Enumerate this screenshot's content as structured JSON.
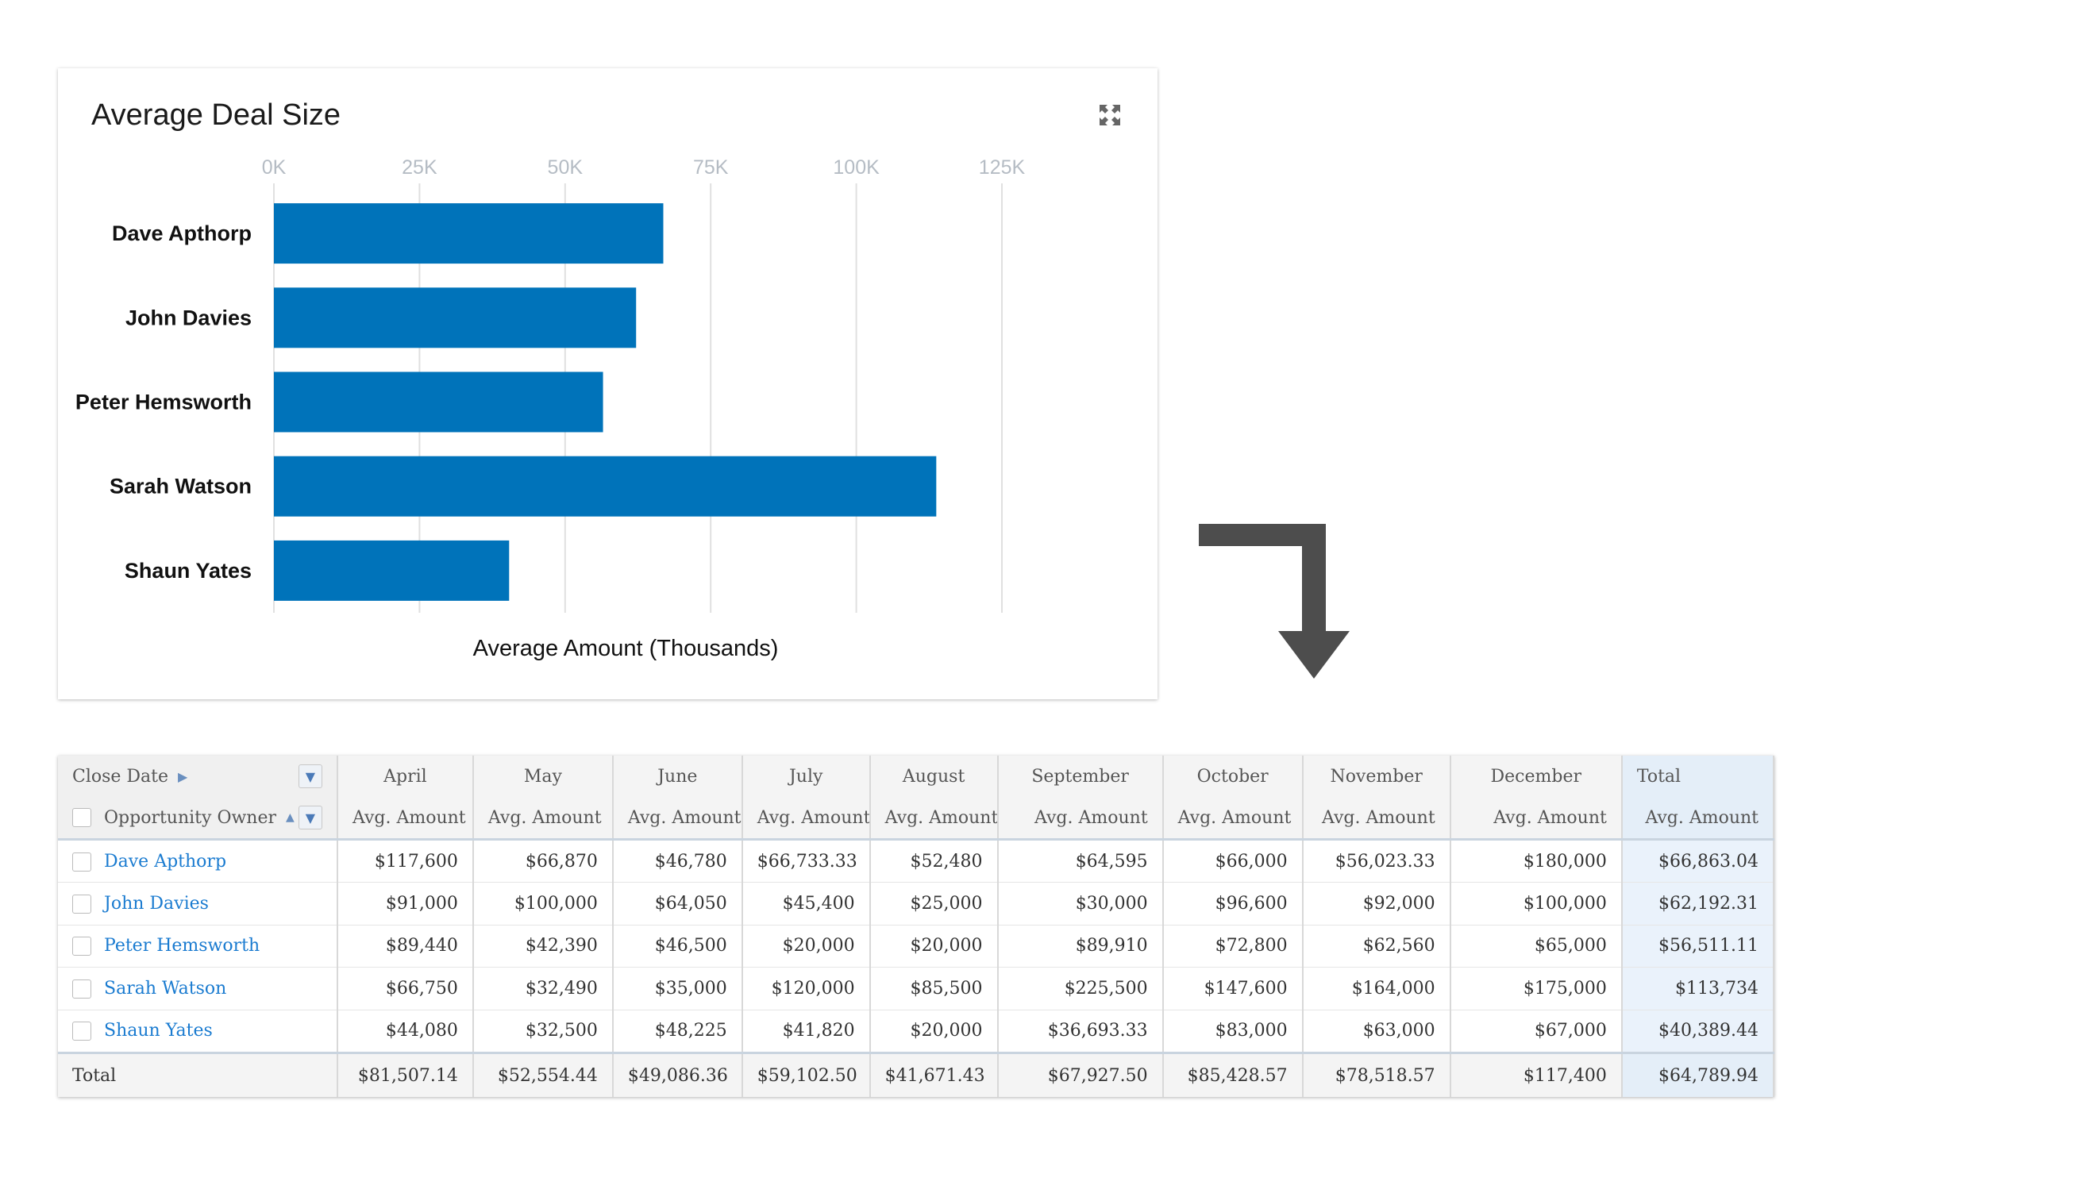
{
  "chart_card": {
    "title": "Average Deal Size",
    "expand_icon": "expand-icon"
  },
  "chart_data": {
    "type": "bar",
    "orientation": "horizontal",
    "title": "Average Deal Size",
    "xlabel": "Average Amount (Thousands)",
    "ylabel": "",
    "categories": [
      "Dave Apthorp",
      "John Davies",
      "Peter Hemsworth",
      "Sarah Watson",
      "Shaun Yates"
    ],
    "values": [
      66.86,
      62.19,
      56.51,
      113.73,
      40.39
    ],
    "xticks": [
      "0K",
      "25K",
      "50K",
      "75K",
      "100K",
      "125K"
    ],
    "xlim": [
      0,
      125
    ],
    "grid": true,
    "bar_color": "#0073ba"
  },
  "arrow_icon": "arrow-down-turn-icon",
  "table": {
    "close_date_label": "Close Date",
    "owner_label": "Opportunity Owner",
    "months": [
      "April",
      "May",
      "June",
      "July",
      "August",
      "September",
      "October",
      "November",
      "December",
      "Total"
    ],
    "metric_label": "Avg. Amount",
    "rows": [
      {
        "owner": "Dave Apthorp",
        "values": [
          "$117,600",
          "$66,870",
          "$46,780",
          "$66,733.33",
          "$52,480",
          "$64,595",
          "$66,000",
          "$56,023.33",
          "$180,000",
          "$66,863.04"
        ]
      },
      {
        "owner": "John Davies",
        "values": [
          "$91,000",
          "$100,000",
          "$64,050",
          "$45,400",
          "$25,000",
          "$30,000",
          "$96,600",
          "$92,000",
          "$100,000",
          "$62,192.31"
        ]
      },
      {
        "owner": "Peter Hemsworth",
        "values": [
          "$89,440",
          "$42,390",
          "$46,500",
          "$20,000",
          "$20,000",
          "$89,910",
          "$72,800",
          "$62,560",
          "$65,000",
          "$56,511.11"
        ]
      },
      {
        "owner": "Sarah Watson",
        "values": [
          "$66,750",
          "$32,490",
          "$35,000",
          "$120,000",
          "$85,500",
          "$225,500",
          "$147,600",
          "$164,000",
          "$175,000",
          "$113,734"
        ]
      },
      {
        "owner": "Shaun Yates",
        "values": [
          "$44,080",
          "$32,500",
          "$48,225",
          "$41,820",
          "$20,000",
          "$36,693.33",
          "$83,000",
          "$63,000",
          "$67,000",
          "$40,389.44"
        ]
      }
    ],
    "total_label": "Total",
    "totals": [
      "$81,507.14",
      "$52,554.44",
      "$49,086.36",
      "$59,102.50",
      "$41,671.43",
      "$67,927.50",
      "$85,428.57",
      "$78,518.57",
      "$117,400",
      "$64,789.94"
    ]
  }
}
